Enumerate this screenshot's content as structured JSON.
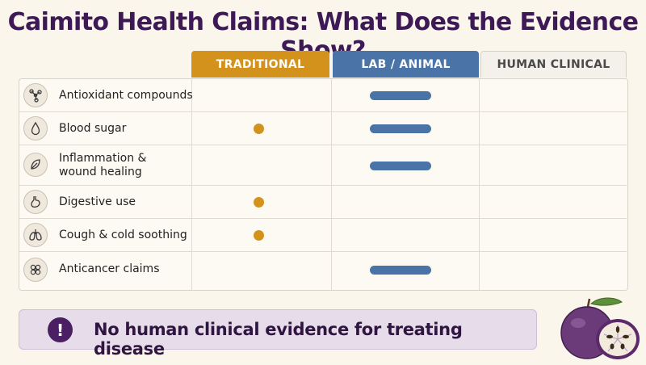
{
  "title": "Caimito Health Claims: What Does the Evidence Show?",
  "columns": [
    {
      "label": "TRADITIONAL",
      "color": "#d3921c"
    },
    {
      "label": "LAB / ANIMAL",
      "color": "#4a73a8"
    },
    {
      "label": "HUMAN CLINICAL",
      "color": "#f4f1ea"
    }
  ],
  "rows": [
    {
      "label": "Antioxidant compounds",
      "icon": "molecule-icon",
      "traditional": false,
      "lab_animal": true,
      "human_clinical": false
    },
    {
      "label": "Blood sugar",
      "icon": "droplet-icon",
      "traditional": true,
      "lab_animal": true,
      "human_clinical": false
    },
    {
      "label": "Inflammation & wound healing",
      "icon": "leaf-icon",
      "traditional": false,
      "lab_animal": true,
      "human_clinical": false
    },
    {
      "label": "Digestive use",
      "icon": "stomach-icon",
      "traditional": true,
      "lab_animal": false,
      "human_clinical": false
    },
    {
      "label": "Cough & cold soothing",
      "icon": "lungs-icon",
      "traditional": true,
      "lab_animal": false,
      "human_clinical": false
    },
    {
      "label": "Anticancer claims",
      "icon": "cells-icon",
      "traditional": false,
      "lab_animal": true,
      "human_clinical": false
    }
  ],
  "banner": {
    "text": "No human clinical evidence for treating disease",
    "icon": "exclamation-icon",
    "icon_glyph": "!"
  },
  "illustration": {
    "icon": "caimito-fruit-icon"
  }
}
